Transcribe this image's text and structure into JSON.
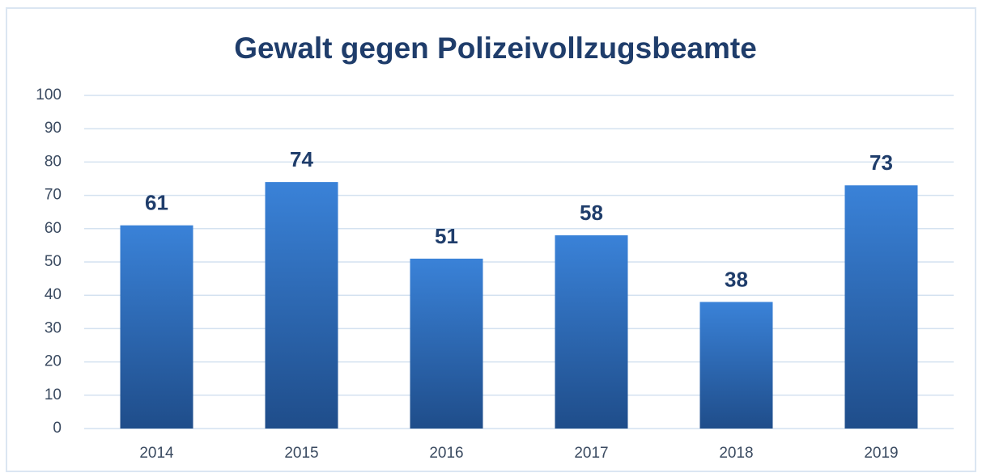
{
  "chart_data": {
    "type": "bar",
    "title": "Gewalt gegen Polizeivollzugsbeamte",
    "categories": [
      "2014",
      "2015",
      "2016",
      "2017",
      "2018",
      "2019"
    ],
    "values": [
      61,
      74,
      51,
      58,
      38,
      73
    ],
    "color": "#3a82d8",
    "ylim": [
      0,
      100
    ],
    "yticks": [
      0,
      10,
      20,
      30,
      40,
      50,
      60,
      70,
      80,
      90,
      100
    ],
    "grid": true
  }
}
